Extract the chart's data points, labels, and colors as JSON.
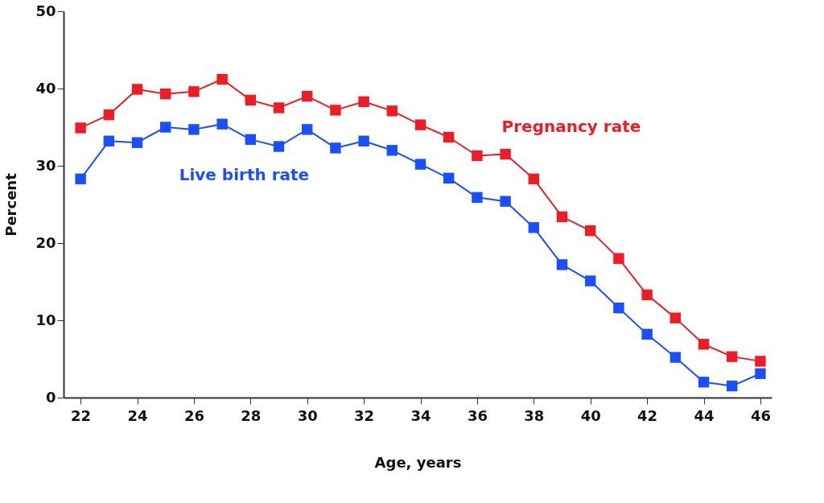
{
  "chart_data": {
    "type": "line",
    "xlabel": "Age, years",
    "ylabel": "Percent",
    "x": [
      22,
      23,
      24,
      25,
      26,
      27,
      28,
      29,
      30,
      31,
      32,
      33,
      34,
      35,
      36,
      37,
      38,
      39,
      40,
      41,
      42,
      43,
      44,
      45,
      46
    ],
    "series": [
      {
        "name": "Pregnancy rate",
        "color": "#ee1c25",
        "values": [
          34.9,
          36.6,
          39.9,
          39.3,
          39.6,
          41.2,
          38.5,
          37.5,
          39.0,
          37.2,
          38.3,
          37.1,
          35.3,
          33.7,
          31.3,
          31.5,
          28.3,
          23.4,
          21.6,
          18.0,
          13.3,
          10.3,
          6.9,
          5.3,
          4.7
        ]
      },
      {
        "name": "Live birth rate",
        "color": "#1a4fff",
        "values": [
          28.3,
          33.2,
          33.0,
          35.0,
          34.7,
          35.4,
          33.4,
          32.5,
          34.7,
          32.3,
          33.2,
          32.0,
          30.2,
          28.4,
          25.9,
          25.4,
          22.0,
          17.2,
          15.1,
          11.6,
          8.2,
          5.2,
          2.0,
          1.5,
          3.1
        ]
      }
    ],
    "xlim": [
      21.4,
      46.4
    ],
    "xticks": [
      22,
      24,
      26,
      28,
      30,
      32,
      34,
      36,
      38,
      40,
      42,
      44,
      46
    ],
    "ylim": [
      0,
      50
    ],
    "yticks": [
      0,
      10,
      20,
      30,
      40,
      50
    ],
    "grid": false,
    "legend": false,
    "marker": "square",
    "line_style": "solid"
  }
}
